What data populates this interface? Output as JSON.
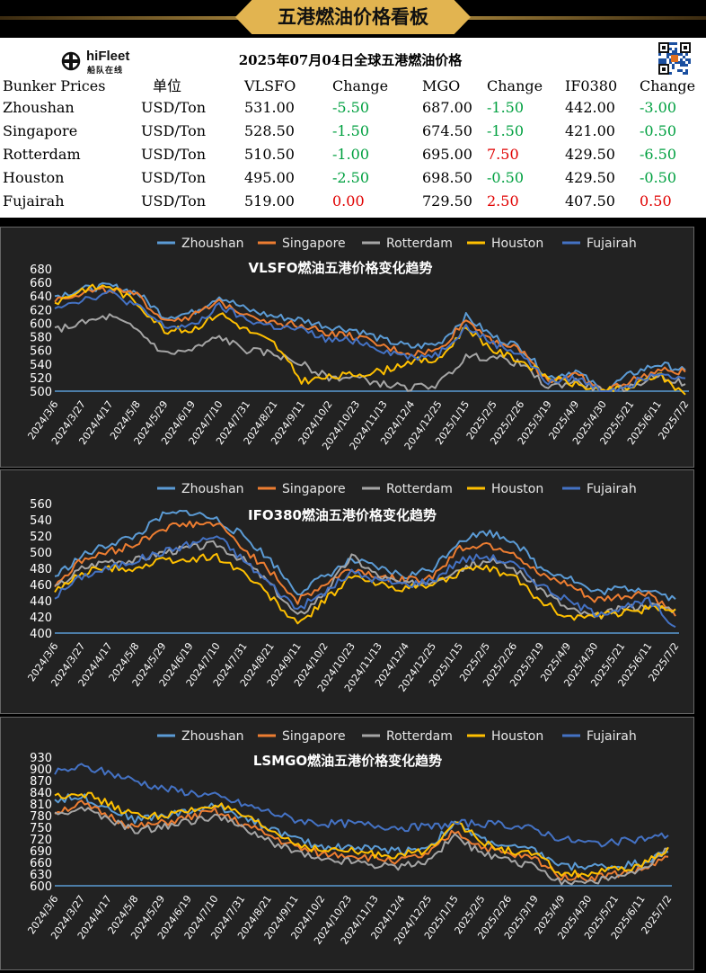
{
  "banner": {
    "title": "五港燃油价格看板"
  },
  "logo": {
    "name": "hiFleet",
    "subtitle": "船队在线"
  },
  "table": {
    "title": "2025年07月04日全球五港燃油价格",
    "headers": [
      "Bunker Prices",
      "单位",
      "VLSFO",
      "Change",
      "MGO",
      "Change",
      "IF0380",
      "Change"
    ],
    "rows": [
      {
        "port": "Zhoushan",
        "unit": "USD/Ton",
        "vlsfo": "531.00",
        "vlsfo_change": "-5.50",
        "mgo": "687.00",
        "mgo_change": "-1.50",
        "ifo": "442.00",
        "ifo_change": "-3.00"
      },
      {
        "port": "Singapore",
        "unit": "USD/Ton",
        "vlsfo": "528.50",
        "vlsfo_change": "-1.50",
        "mgo": "674.50",
        "mgo_change": "-1.50",
        "ifo": "421.00",
        "ifo_change": "-0.50"
      },
      {
        "port": "Rotterdam",
        "unit": "USD/Ton",
        "vlsfo": "510.50",
        "vlsfo_change": "-1.00",
        "mgo": "695.00",
        "mgo_change": "7.50",
        "ifo": "429.50",
        "ifo_change": "-6.50"
      },
      {
        "port": "Houston",
        "unit": "USD/Ton",
        "vlsfo": "495.00",
        "vlsfo_change": "-2.50",
        "mgo": "698.50",
        "mgo_change": "-0.50",
        "ifo": "429.50",
        "ifo_change": "-0.50"
      },
      {
        "port": "Fujairah",
        "unit": "USD/Ton",
        "vlsfo": "519.00",
        "vlsfo_change": "0.00",
        "mgo": "729.50",
        "mgo_change": "2.50",
        "ifo": "407.50",
        "ifo_change": "0.50"
      }
    ],
    "colors": {
      "negative": "#00a040",
      "positive": "#e00000",
      "neutral": "#e00000"
    }
  },
  "legend_items": [
    "Zhoushan",
    "Singapore",
    "Rotterdam",
    "Houston",
    "Fujairah"
  ],
  "series_colors": {
    "Zhoushan": "#5b9bd5",
    "Singapore": "#ed7d31",
    "Rotterdam": "#a5a5a5",
    "Houston": "#ffc000",
    "Fujairah": "#4472c4"
  },
  "chart_data": [
    {
      "type": "line",
      "title": "VLSFO燃油五港价格变化趋势",
      "legend": "top",
      "yticks": [
        500,
        520,
        540,
        560,
        580,
        600,
        620,
        640,
        660,
        680
      ],
      "ylim": [
        500,
        680
      ],
      "categories": [
        "2024/3/6",
        "2024/3/27",
        "2024/4/17",
        "2024/5/8",
        "2024/5/29",
        "2024/6/19",
        "2024/7/10",
        "2024/7/31",
        "2024/8/21",
        "2024/9/11",
        "2024/10/2",
        "2024/10/23",
        "2024/11/13",
        "2024/12/4",
        "2024/12/25",
        "2025/1/15",
        "2025/2/5",
        "2025/2/26",
        "2025/3/19",
        "2025/4/9",
        "2025/4/30",
        "2025/5/21",
        "2025/6/11",
        "2025/7/2"
      ],
      "series": [
        {
          "name": "Zhoushan",
          "values": [
            640,
            650,
            655,
            645,
            610,
            615,
            640,
            620,
            610,
            605,
            595,
            590,
            575,
            565,
            570,
            610,
            580,
            565,
            520,
            530,
            500,
            525,
            540,
            531
          ]
        },
        {
          "name": "Singapore",
          "values": [
            635,
            645,
            650,
            640,
            605,
            610,
            630,
            615,
            600,
            598,
            585,
            580,
            565,
            555,
            560,
            605,
            575,
            560,
            515,
            525,
            500,
            515,
            530,
            528.5
          ]
        },
        {
          "name": "Rotterdam",
          "values": [
            590,
            600,
            610,
            590,
            555,
            560,
            580,
            560,
            555,
            540,
            520,
            520,
            510,
            505,
            510,
            550,
            550,
            540,
            505,
            515,
            500,
            505,
            525,
            510.5
          ]
        },
        {
          "name": "Houston",
          "values": [
            630,
            650,
            655,
            630,
            590,
            590,
            615,
            590,
            570,
            515,
            520,
            525,
            530,
            545,
            545,
            595,
            560,
            545,
            520,
            510,
            500,
            505,
            525,
            495
          ]
        },
        {
          "name": "Fujairah",
          "values": [
            625,
            635,
            645,
            625,
            595,
            595,
            625,
            605,
            595,
            590,
            575,
            575,
            560,
            550,
            555,
            595,
            570,
            555,
            512,
            520,
            500,
            510,
            530,
            519
          ]
        }
      ]
    },
    {
      "type": "line",
      "title": "IFO380燃油五港价格变化趋势",
      "legend": "top",
      "yticks": [
        400,
        420,
        440,
        460,
        480,
        500,
        520,
        540,
        560
      ],
      "ylim": [
        400,
        560
      ],
      "categories": [
        "2024/3/6",
        "2024/3/27",
        "2024/4/17",
        "2024/5/8",
        "2024/5/29",
        "2024/6/19",
        "2024/7/10",
        "2024/7/31",
        "2024/8/21",
        "2024/9/11",
        "2024/10/2",
        "2024/10/23",
        "2024/11/13",
        "2024/12/4",
        "2024/12/25",
        "2025/1/15",
        "2025/2/5",
        "2025/2/26",
        "2025/3/19",
        "2025/4/9",
        "2025/4/30",
        "2025/5/21",
        "2025/6/11",
        "2025/7/2"
      ],
      "series": [
        {
          "name": "Zhoushan",
          "values": [
            470,
            495,
            510,
            520,
            545,
            550,
            540,
            520,
            490,
            450,
            470,
            490,
            480,
            470,
            480,
            515,
            525,
            515,
            480,
            470,
            450,
            455,
            455,
            442
          ]
        },
        {
          "name": "Singapore",
          "values": [
            460,
            490,
            500,
            510,
            530,
            535,
            535,
            505,
            475,
            440,
            460,
            480,
            470,
            465,
            470,
            505,
            510,
            500,
            470,
            460,
            440,
            445,
            450,
            421
          ]
        },
        {
          "name": "Rotterdam",
          "values": [
            455,
            480,
            490,
            490,
            500,
            505,
            510,
            490,
            460,
            420,
            450,
            495,
            470,
            460,
            465,
            480,
            490,
            480,
            455,
            430,
            420,
            430,
            435,
            429.5
          ]
        },
        {
          "name": "Houston",
          "values": [
            450,
            475,
            480,
            480,
            490,
            490,
            495,
            475,
            445,
            410,
            440,
            470,
            460,
            455,
            460,
            475,
            480,
            470,
            440,
            420,
            420,
            425,
            430,
            429.5
          ]
        },
        {
          "name": "Fujairah",
          "values": [
            445,
            470,
            480,
            490,
            500,
            510,
            520,
            490,
            460,
            430,
            450,
            475,
            465,
            460,
            465,
            490,
            495,
            485,
            460,
            440,
            425,
            430,
            440,
            407.5
          ]
        }
      ]
    },
    {
      "type": "line",
      "title": "LSMGO燃油五港价格变化趋势",
      "legend": "top",
      "yticks": [
        600,
        630,
        660,
        690,
        720,
        750,
        780,
        810,
        840,
        870,
        900,
        930
      ],
      "ylim": [
        600,
        930
      ],
      "categories": [
        "2024/3/6",
        "2024/3/27",
        "2024/4/17",
        "2024/5/8",
        "2024/5/29",
        "2024/6/19",
        "2024/7/10",
        "2024/7/31",
        "2024/8/21",
        "2024/9/11",
        "2024/10/2",
        "2024/10/23",
        "2024/11/13",
        "2024/12/4",
        "2024/12/25",
        "2025/1/15",
        "2025/2/5",
        "2025/2/26",
        "2025/3/19",
        "2025/4/9",
        "2025/4/30",
        "2025/5/21",
        "2025/6/11",
        "2025/7/2"
      ],
      "series": [
        {
          "name": "Zhoushan",
          "values": [
            820,
            830,
            800,
            770,
            780,
            790,
            805,
            780,
            750,
            720,
            700,
            700,
            695,
            690,
            700,
            760,
            720,
            700,
            690,
            650,
            650,
            650,
            660,
            687
          ]
        },
        {
          "name": "Singapore",
          "values": [
            790,
            810,
            780,
            750,
            760,
            775,
            790,
            760,
            730,
            700,
            680,
            680,
            670,
            665,
            680,
            740,
            700,
            680,
            670,
            625,
            620,
            630,
            640,
            674.5
          ]
        },
        {
          "name": "Rotterdam",
          "values": [
            780,
            800,
            770,
            740,
            750,
            765,
            780,
            750,
            715,
            690,
            665,
            665,
            655,
            650,
            665,
            730,
            680,
            665,
            650,
            610,
            610,
            620,
            635,
            695
          ]
        },
        {
          "name": "Houston",
          "values": [
            830,
            840,
            810,
            780,
            780,
            790,
            810,
            780,
            745,
            710,
            690,
            690,
            680,
            680,
            690,
            770,
            710,
            690,
            680,
            630,
            630,
            640,
            650,
            698.5
          ]
        },
        {
          "name": "Fujairah",
          "values": [
            890,
            905,
            890,
            870,
            850,
            840,
            830,
            810,
            790,
            770,
            760,
            760,
            755,
            750,
            750,
            760,
            760,
            755,
            745,
            720,
            710,
            710,
            720,
            729.5
          ]
        }
      ]
    }
  ]
}
